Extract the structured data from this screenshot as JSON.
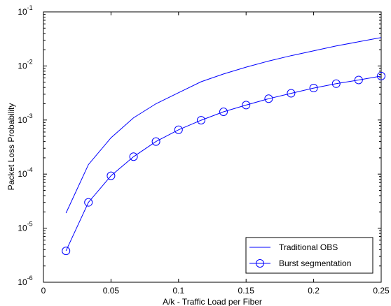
{
  "chart_data": {
    "type": "line",
    "xlabel": "A/k - Traffic Load per Fiber",
    "ylabel": "Packet Loss Probability",
    "xlim": [
      0,
      0.25
    ],
    "ylim": [
      1e-06,
      0.1
    ],
    "yscale": "log",
    "grid": false,
    "legend_position": "bottom-right",
    "x_ticks": [
      {
        "value": 0,
        "label": "0"
      },
      {
        "value": 0.05,
        "label": "0.05"
      },
      {
        "value": 0.1,
        "label": "0.1"
      },
      {
        "value": 0.15,
        "label": "0.15"
      },
      {
        "value": 0.2,
        "label": "0.2"
      },
      {
        "value": 0.25,
        "label": "0.25"
      }
    ],
    "y_ticks": [
      {
        "value": 1e-06,
        "base": "10",
        "exp": "-6"
      },
      {
        "value": 1e-05,
        "base": "10",
        "exp": "-5"
      },
      {
        "value": 0.0001,
        "base": "10",
        "exp": "-4"
      },
      {
        "value": 0.001,
        "base": "10",
        "exp": "-3"
      },
      {
        "value": 0.01,
        "base": "10",
        "exp": "-2"
      },
      {
        "value": 0.1,
        "base": "10",
        "exp": "-1"
      }
    ],
    "series": [
      {
        "name": "Traditional OBS",
        "color": "#0000ff",
        "marker": "none",
        "x": [
          0.0167,
          0.0333,
          0.05,
          0.0667,
          0.0833,
          0.1,
          0.1167,
          0.1333,
          0.15,
          0.1667,
          0.1833,
          0.2,
          0.2167,
          0.2333,
          0.25
        ],
        "y": [
          1.9e-05,
          0.00015,
          0.00047,
          0.0011,
          0.002,
          0.0032,
          0.0051,
          0.0071,
          0.0095,
          0.0123,
          0.0155,
          0.019,
          0.0235,
          0.028,
          0.0335
        ]
      },
      {
        "name": "Burst segmentation",
        "color": "#0000ff",
        "marker": "circle",
        "x": [
          0.0167,
          0.0333,
          0.05,
          0.0667,
          0.0833,
          0.1,
          0.1167,
          0.1333,
          0.15,
          0.1667,
          0.1833,
          0.2,
          0.2167,
          0.2333,
          0.25
        ],
        "y": [
          3.8e-06,
          3e-05,
          9.3e-05,
          0.00021,
          0.0004,
          0.00066,
          0.00099,
          0.00142,
          0.00189,
          0.00248,
          0.00312,
          0.0039,
          0.0047,
          0.0055,
          0.0065
        ]
      }
    ]
  }
}
